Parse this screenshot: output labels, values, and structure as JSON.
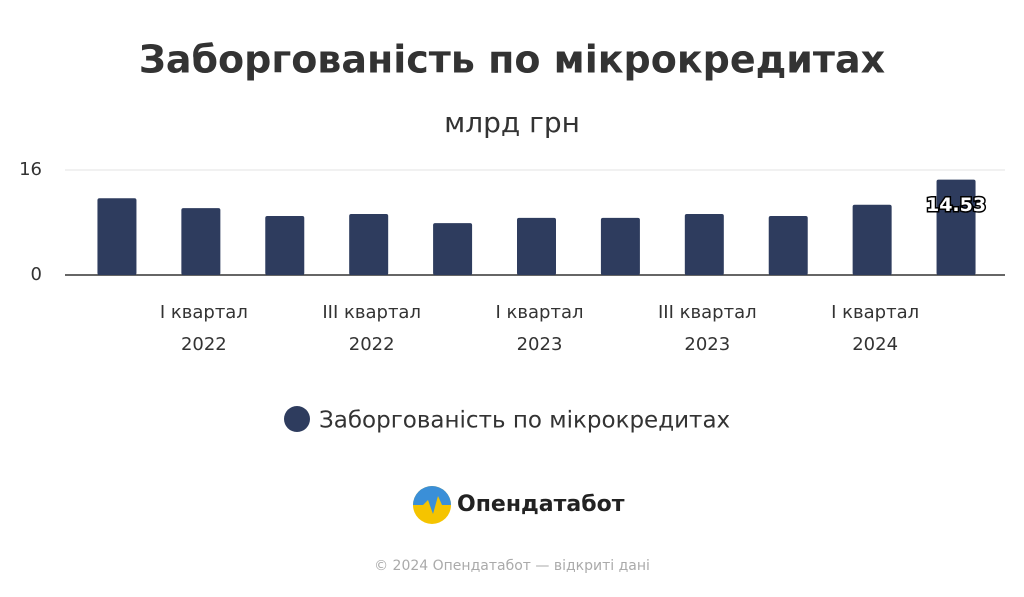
{
  "chart_data": {
    "type": "bar",
    "title": "Заборгованість по мікрокредитах",
    "subtitle": "млрд грн",
    "categories": [
      null,
      "I квартал 2022",
      null,
      "III квартал 2022",
      null,
      "I квартал 2023",
      null,
      "III квартал 2023",
      null,
      "I квартал 2024",
      null
    ],
    "series": [
      {
        "name": "Заборгованість по мікрокредитах",
        "color": "#2e3c5e",
        "values": [
          11.7,
          10.2,
          9.0,
          9.3,
          7.9,
          8.7,
          8.7,
          9.3,
          9.0,
          10.7,
          14.53
        ]
      }
    ],
    "ylim": [
      0,
      16
    ],
    "yticks": [
      0,
      16
    ],
    "grid": true
  },
  "branding": {
    "logo": "Опендатабот",
    "footer": "© 2024 Опендатабот — відкриті дані"
  }
}
